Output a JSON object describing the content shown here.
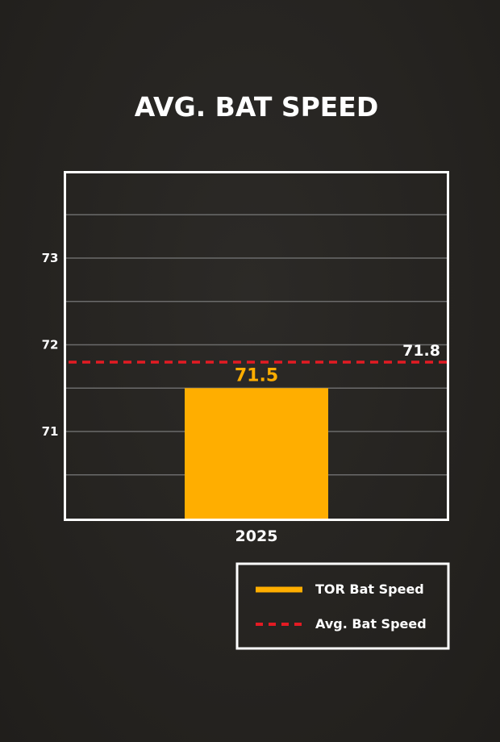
{
  "chart_data": {
    "type": "bar",
    "title": "AVG. BAT SPEED",
    "categories": [
      "2025"
    ],
    "series": [
      {
        "name": "TOR Bat Speed",
        "values": [
          71.5
        ],
        "value_labels": [
          "71.5"
        ],
        "color": "#FFAE00"
      }
    ],
    "reference_line": {
      "name": "Avg. Bat Speed",
      "value": 71.8,
      "label": "71.8",
      "color": "#E31B23",
      "style": "dashed"
    },
    "ylim": [
      70,
      74
    ],
    "yticks": [
      71,
      72,
      73
    ],
    "ytick_labels": [
      "71",
      "72",
      "73"
    ],
    "gridlines": [
      70.5,
      71,
      71.5,
      72,
      72.5,
      73,
      73.5
    ],
    "grid": true,
    "legend_position": "bottom-right"
  }
}
